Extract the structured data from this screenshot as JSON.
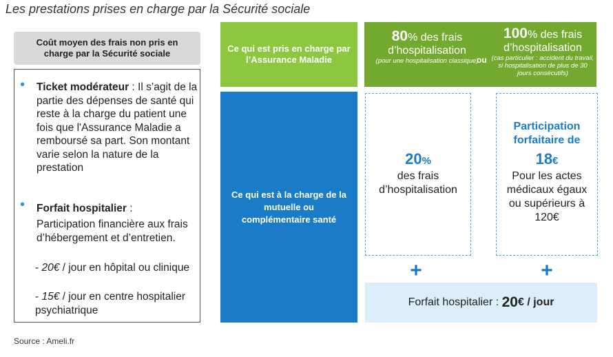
{
  "title": "Les prestations prises en charge par la Sécurité sociale",
  "left": {
    "header": "Coût moyen des frais non pris en charge par la Sécurité sociale",
    "ticket_title": "Ticket modérateur",
    "ticket_text": " : Il s’agit de la partie des dépenses de santé qui reste à la charge du patient une fois que l'Assurance Maladie a remboursé sa part. Son montant varie selon la nature de la prestation",
    "forfait_title": "Forfait hospitalier",
    "forfait_colon": " :",
    "forfait_text": "Participation financière aux frais d’hébergement et d’entretien.",
    "item1_amount": "20€",
    "item1_text": " / jour en hôpital ou clinique",
    "item2_amount": "15€",
    "item2_text": " / jour en centre hospitalier psychiatrique"
  },
  "green": {
    "left_label": "Ce qui est pris en charge par l’Assurance  Maladie",
    "pct80_num": "80",
    "pct_sign": "%",
    "pct80_rest": " des frais d’hospitalisation",
    "pct80_note": "(pour une hospitalisation classique)",
    "or": "ou",
    "pct100_num": "100",
    "pct100_rest": " des frais d’hospitalisation",
    "pct100_note": "(cas particulier : accident du travail, si hospitalisation de plus de 30 jours consécutifs)"
  },
  "blue": {
    "left_label": "Ce qui est à la charge de la mutuelle ou complémentaire  santé",
    "box20_num": "20",
    "box20_sign": "%",
    "box20_text": "des frais d’hospitalisation",
    "box18_title": "Participation forfaitaire de",
    "box18_num": "18",
    "box18_sign": "€",
    "box18_text": "Pour les actes médicaux égaux ou supérieurs à 120€",
    "plus": "+",
    "forfait_label": "Forfait hospitalier : ",
    "forfait_value": "20",
    "forfait_unit": "€ / jour"
  },
  "source": "Source : Ameli.fr",
  "colors": {
    "green_light": "#8dc63f",
    "green_dark": "#73a92e",
    "blue": "#1a7bc9",
    "light_blue": "#dceef9",
    "header_gray": "#d9d9d9"
  }
}
